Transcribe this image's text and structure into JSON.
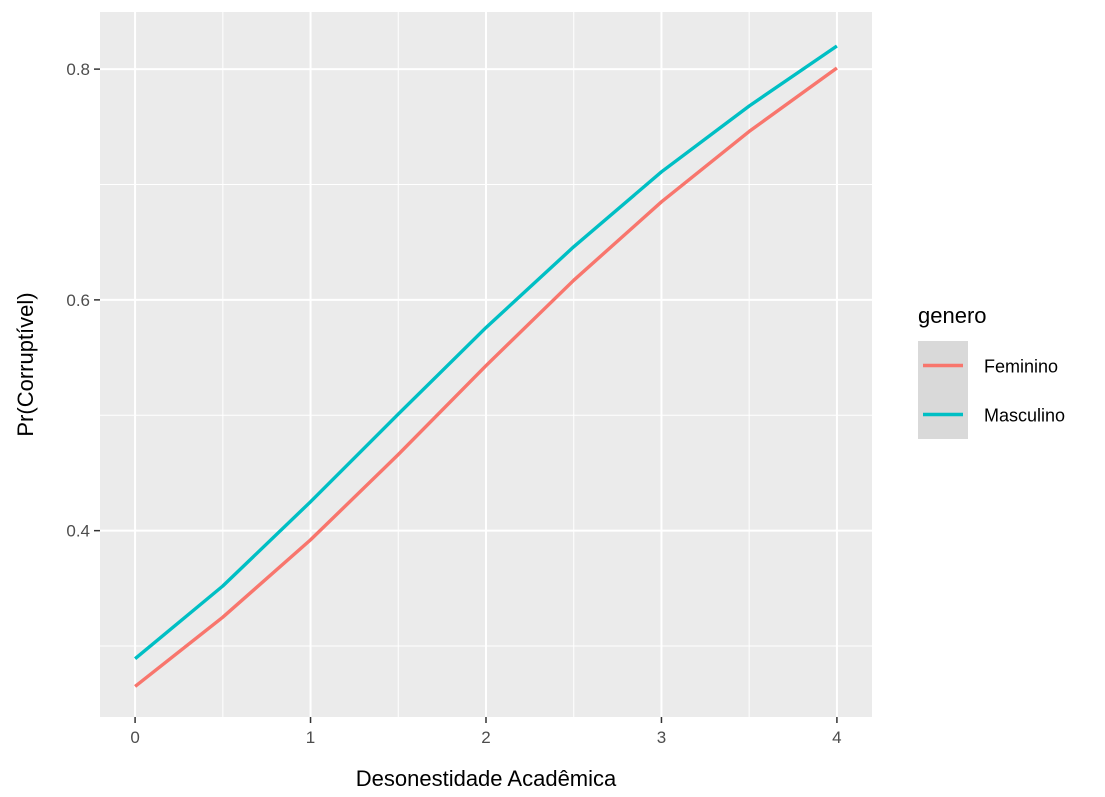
{
  "chart_data": {
    "type": "line",
    "title": "",
    "xlabel": "Desonestidade Acadêmica",
    "ylabel": "Pr(Corruptível)",
    "xlim": [
      -0.2,
      4.2
    ],
    "ylim": [
      0.2385,
      0.8495
    ],
    "xticks": [
      0,
      1,
      2,
      3,
      4
    ],
    "xtick_labels": [
      "0",
      "1",
      "2",
      "3",
      "4"
    ],
    "yticks": [
      0.4,
      0.6,
      0.8
    ],
    "ytick_labels": [
      "0.4",
      "0.6",
      "0.8"
    ],
    "grid": true,
    "legend": {
      "title": "genero",
      "position": "right"
    },
    "series": [
      {
        "name": "Feminino",
        "color": "#F8766D",
        "x": [
          0,
          0.5,
          1,
          1.5,
          2,
          2.5,
          3,
          3.5,
          4
        ],
        "y": [
          0.265,
          0.325,
          0.392,
          0.466,
          0.543,
          0.617,
          0.685,
          0.746,
          0.801
        ]
      },
      {
        "name": "Masculino",
        "color": "#00BFC4",
        "x": [
          0,
          0.5,
          1,
          1.5,
          2,
          2.5,
          3,
          3.5,
          4
        ],
        "y": [
          0.289,
          0.352,
          0.425,
          0.501,
          0.576,
          0.646,
          0.711,
          0.768,
          0.82
        ]
      }
    ]
  }
}
